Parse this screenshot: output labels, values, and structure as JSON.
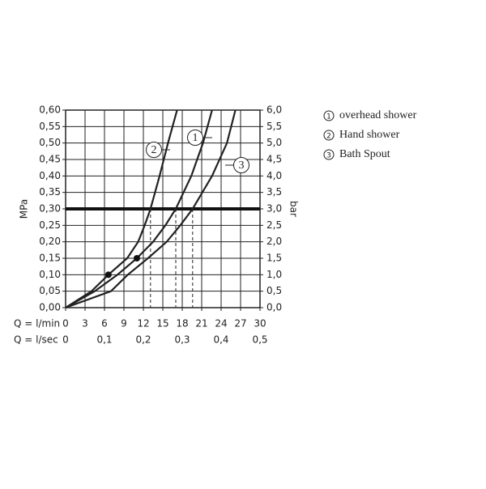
{
  "chart_data": {
    "type": "line",
    "xlabel": "Q = l/min",
    "x2label": "Q = l/sec",
    "ylabel": "MPa",
    "y2label": "bar",
    "xlim": [
      0,
      30
    ],
    "xticks": [
      0,
      3,
      6,
      9,
      12,
      15,
      18,
      21,
      24,
      27,
      30
    ],
    "x2lim": [
      0,
      0.5
    ],
    "x2ticks": [
      0,
      {
        "value": 0.1,
        "label": "0,1"
      },
      {
        "value": 0.2,
        "label": "0,2"
      },
      {
        "value": 0.3,
        "label": "0,3"
      },
      {
        "value": 0.4,
        "label": "0,4"
      },
      {
        "value": 0.5,
        "label": "0,5"
      }
    ],
    "ylim": [
      0,
      0.6
    ],
    "yticks": [
      {
        "value": 0,
        "label": "0,00"
      },
      {
        "value": 0.05,
        "label": "0,05"
      },
      {
        "value": 0.1,
        "label": "0,10"
      },
      {
        "value": 0.15,
        "label": "0,15"
      },
      {
        "value": 0.2,
        "label": "0,20"
      },
      {
        "value": 0.25,
        "label": "0,25"
      },
      {
        "value": 0.3,
        "label": "0,30"
      },
      {
        "value": 0.35,
        "label": "0,35"
      },
      {
        "value": 0.4,
        "label": "0,40"
      },
      {
        "value": 0.45,
        "label": "0,45"
      },
      {
        "value": 0.5,
        "label": "0,50"
      },
      {
        "value": 0.55,
        "label": "0,55"
      },
      {
        "value": 0.6,
        "label": "0,60"
      }
    ],
    "y2lim": [
      0,
      6
    ],
    "y2ticks": [
      {
        "value": 0,
        "label": "0,0"
      },
      {
        "value": 0.5,
        "label": "0,5"
      },
      {
        "value": 1,
        "label": "1,0"
      },
      {
        "value": 1.5,
        "label": "1,5"
      },
      {
        "value": 2,
        "label": "2,0"
      },
      {
        "value": 2.5,
        "label": "2,5"
      },
      {
        "value": 3,
        "label": "3,0"
      },
      {
        "value": 3.5,
        "label": "3,5"
      },
      {
        "value": 4,
        "label": "4,0"
      },
      {
        "value": 4.5,
        "label": "4,5"
      },
      {
        "value": 5,
        "label": "5,0"
      },
      {
        "value": 5.5,
        "label": "5,5"
      },
      {
        "value": 6,
        "label": "6,0"
      }
    ],
    "grid": true,
    "color": "#222222",
    "reference_y": 0.3,
    "reference_x": [
      13.1,
      17,
      18,
      19.6
    ],
    "points": [
      {
        "x": 6.6,
        "y": 0.1
      },
      {
        "x": 11,
        "y": 0.15
      }
    ],
    "series": [
      {
        "name": "overhead shower",
        "label": "1",
        "x": [
          0,
          4.5,
          8,
          11,
          13.5,
          15.4,
          17,
          19.4,
          21.2,
          22.6
        ],
        "values": [
          0,
          0.05,
          0.1,
          0.15,
          0.2,
          0.25,
          0.3,
          0.4,
          0.5,
          0.6
        ]
      },
      {
        "name": "Hand shower",
        "label": "2",
        "x": [
          0,
          2,
          4,
          6.6,
          9.5,
          11.2,
          12.2,
          13.1,
          14.5,
          15.8,
          17.2
        ],
        "values": [
          0,
          0.025,
          0.05,
          0.1,
          0.15,
          0.2,
          0.25,
          0.3,
          0.4,
          0.5,
          0.6
        ]
      },
      {
        "name": "Bath Spout",
        "label": "3",
        "x": [
          0,
          7,
          9.6,
          12.7,
          15.6,
          17.7,
          19.6,
          22.6,
          24.9,
          26.2
        ],
        "values": [
          0,
          0.05,
          0.1,
          0.15,
          0.2,
          0.25,
          0.3,
          0.4,
          0.5,
          0.6
        ]
      }
    ]
  }
}
